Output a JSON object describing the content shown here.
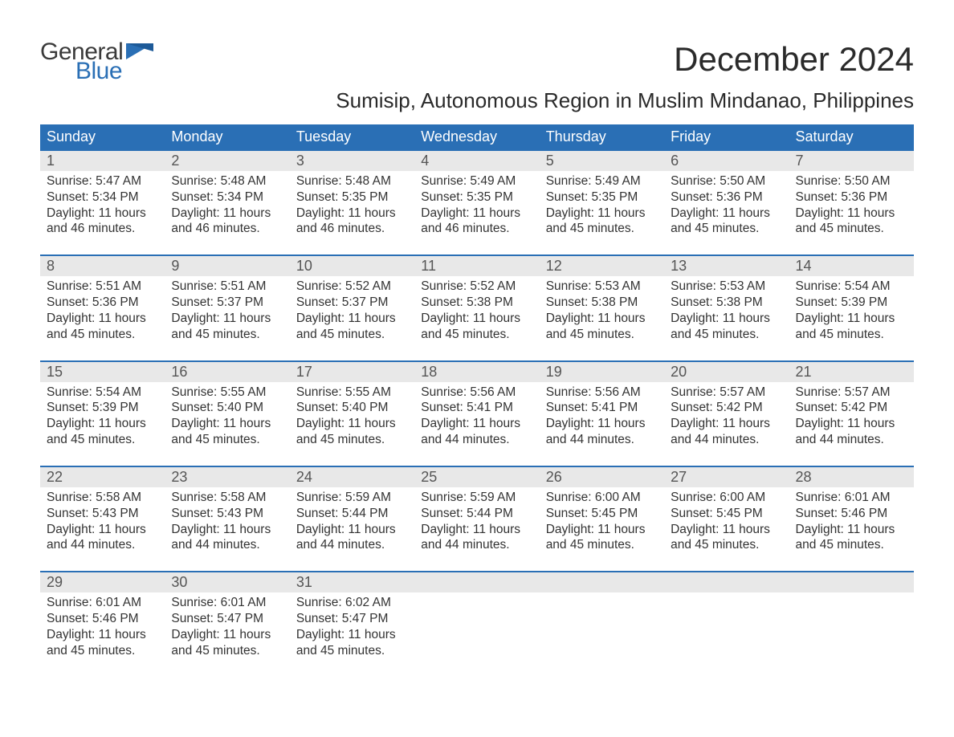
{
  "logo": {
    "general": "General",
    "blue": "Blue",
    "flag_color": "#2a6fb5"
  },
  "title": "December 2024",
  "location": "Sumisip, Autonomous Region in Muslim Mindanao, Philippines",
  "colors": {
    "header_bg": "#2a6fb5",
    "header_text": "#ffffff",
    "daynum_bg": "#e8e8e8",
    "daynum_text": "#555555",
    "body_text": "#333333",
    "week_border": "#2a6fb5",
    "page_bg": "#ffffff"
  },
  "typography": {
    "title_fontsize": 42,
    "location_fontsize": 26,
    "weekday_fontsize": 18,
    "daynum_fontsize": 18,
    "body_fontsize": 15.5
  },
  "weekdays": [
    "Sunday",
    "Monday",
    "Tuesday",
    "Wednesday",
    "Thursday",
    "Friday",
    "Saturday"
  ],
  "labels": {
    "sunrise": "Sunrise:",
    "sunset": "Sunset:",
    "daylight": "Daylight:"
  },
  "weeks": [
    [
      {
        "n": "1",
        "sr": "5:47 AM",
        "ss": "5:34 PM",
        "dl": "11 hours and 46 minutes."
      },
      {
        "n": "2",
        "sr": "5:48 AM",
        "ss": "5:34 PM",
        "dl": "11 hours and 46 minutes."
      },
      {
        "n": "3",
        "sr": "5:48 AM",
        "ss": "5:35 PM",
        "dl": "11 hours and 46 minutes."
      },
      {
        "n": "4",
        "sr": "5:49 AM",
        "ss": "5:35 PM",
        "dl": "11 hours and 46 minutes."
      },
      {
        "n": "5",
        "sr": "5:49 AM",
        "ss": "5:35 PM",
        "dl": "11 hours and 45 minutes."
      },
      {
        "n": "6",
        "sr": "5:50 AM",
        "ss": "5:36 PM",
        "dl": "11 hours and 45 minutes."
      },
      {
        "n": "7",
        "sr": "5:50 AM",
        "ss": "5:36 PM",
        "dl": "11 hours and 45 minutes."
      }
    ],
    [
      {
        "n": "8",
        "sr": "5:51 AM",
        "ss": "5:36 PM",
        "dl": "11 hours and 45 minutes."
      },
      {
        "n": "9",
        "sr": "5:51 AM",
        "ss": "5:37 PM",
        "dl": "11 hours and 45 minutes."
      },
      {
        "n": "10",
        "sr": "5:52 AM",
        "ss": "5:37 PM",
        "dl": "11 hours and 45 minutes."
      },
      {
        "n": "11",
        "sr": "5:52 AM",
        "ss": "5:38 PM",
        "dl": "11 hours and 45 minutes."
      },
      {
        "n": "12",
        "sr": "5:53 AM",
        "ss": "5:38 PM",
        "dl": "11 hours and 45 minutes."
      },
      {
        "n": "13",
        "sr": "5:53 AM",
        "ss": "5:38 PM",
        "dl": "11 hours and 45 minutes."
      },
      {
        "n": "14",
        "sr": "5:54 AM",
        "ss": "5:39 PM",
        "dl": "11 hours and 45 minutes."
      }
    ],
    [
      {
        "n": "15",
        "sr": "5:54 AM",
        "ss": "5:39 PM",
        "dl": "11 hours and 45 minutes."
      },
      {
        "n": "16",
        "sr": "5:55 AM",
        "ss": "5:40 PM",
        "dl": "11 hours and 45 minutes."
      },
      {
        "n": "17",
        "sr": "5:55 AM",
        "ss": "5:40 PM",
        "dl": "11 hours and 45 minutes."
      },
      {
        "n": "18",
        "sr": "5:56 AM",
        "ss": "5:41 PM",
        "dl": "11 hours and 44 minutes."
      },
      {
        "n": "19",
        "sr": "5:56 AM",
        "ss": "5:41 PM",
        "dl": "11 hours and 44 minutes."
      },
      {
        "n": "20",
        "sr": "5:57 AM",
        "ss": "5:42 PM",
        "dl": "11 hours and 44 minutes."
      },
      {
        "n": "21",
        "sr": "5:57 AM",
        "ss": "5:42 PM",
        "dl": "11 hours and 44 minutes."
      }
    ],
    [
      {
        "n": "22",
        "sr": "5:58 AM",
        "ss": "5:43 PM",
        "dl": "11 hours and 44 minutes."
      },
      {
        "n": "23",
        "sr": "5:58 AM",
        "ss": "5:43 PM",
        "dl": "11 hours and 44 minutes."
      },
      {
        "n": "24",
        "sr": "5:59 AM",
        "ss": "5:44 PM",
        "dl": "11 hours and 44 minutes."
      },
      {
        "n": "25",
        "sr": "5:59 AM",
        "ss": "5:44 PM",
        "dl": "11 hours and 44 minutes."
      },
      {
        "n": "26",
        "sr": "6:00 AM",
        "ss": "5:45 PM",
        "dl": "11 hours and 45 minutes."
      },
      {
        "n": "27",
        "sr": "6:00 AM",
        "ss": "5:45 PM",
        "dl": "11 hours and 45 minutes."
      },
      {
        "n": "28",
        "sr": "6:01 AM",
        "ss": "5:46 PM",
        "dl": "11 hours and 45 minutes."
      }
    ],
    [
      {
        "n": "29",
        "sr": "6:01 AM",
        "ss": "5:46 PM",
        "dl": "11 hours and 45 minutes."
      },
      {
        "n": "30",
        "sr": "6:01 AM",
        "ss": "5:47 PM",
        "dl": "11 hours and 45 minutes."
      },
      {
        "n": "31",
        "sr": "6:02 AM",
        "ss": "5:47 PM",
        "dl": "11 hours and 45 minutes."
      },
      null,
      null,
      null,
      null
    ]
  ]
}
